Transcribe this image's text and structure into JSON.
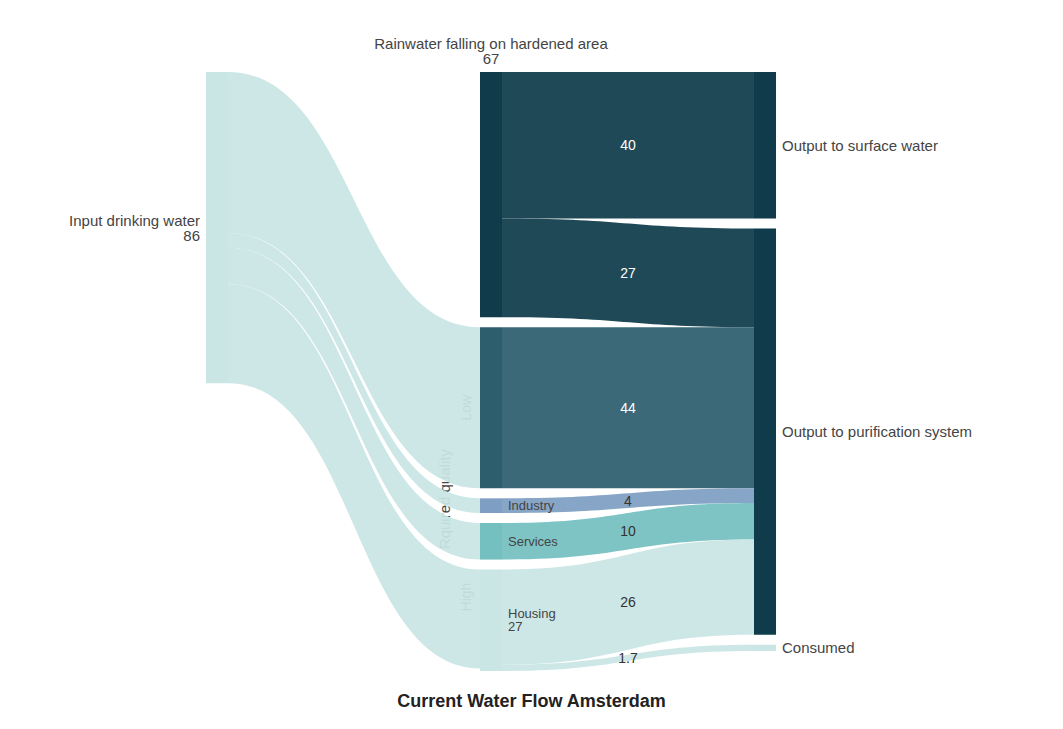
{
  "chart_data": {
    "type": "sankey",
    "title": "Current Water Flow Amsterdam",
    "nodes": [
      {
        "name": "Rainwater falling on hardened area",
        "value": 67,
        "color": "#0f3b4b",
        "data_labels": true
      },
      {
        "name": "Input drinking water",
        "value": 86,
        "color": "#c9e5e4",
        "data_labels": true
      },
      {
        "name": "Low",
        "color": "#2c5e6e"
      },
      {
        "name": "Industry",
        "color": "#7e9ec3"
      },
      {
        "name": "Services",
        "color": "#74bfc0"
      },
      {
        "name": "Housing",
        "value": 27,
        "color": "#c9e5e4",
        "data_labels": true
      },
      {
        "name": "Output to surface water",
        "color": "#0f3b4b"
      },
      {
        "name": "Output to purification system",
        "color": "#0f3b4b"
      },
      {
        "name": "Consumed",
        "color": "#c9e5e4"
      }
    ],
    "links": [
      {
        "source": "Rainwater falling on hardened area",
        "target": "Output to surface water",
        "value": 40,
        "data_labels": true
      },
      {
        "source": "Rainwater falling on hardened area",
        "target": "Output to purification system",
        "value": 27,
        "data_labels": true
      },
      {
        "source": "Input drinking water",
        "target": "Low",
        "value": 44,
        "data_labels": false
      },
      {
        "source": "Input drinking water",
        "target": "Industry",
        "value": 4,
        "data_labels": false
      },
      {
        "source": "Input drinking water",
        "target": "Services",
        "value": 10,
        "data_labels": false
      },
      {
        "source": "Input drinking water",
        "target": "Housing",
        "value": 27,
        "data_labels": false
      },
      {
        "source": "Low",
        "target": "Output to purification system",
        "value": 44,
        "data_labels": true
      },
      {
        "source": "Industry",
        "target": "Output to purification system",
        "value": 4,
        "data_labels": true
      },
      {
        "source": "Services",
        "target": "Output to purification system",
        "value": 10,
        "data_labels": true
      },
      {
        "source": "Housing",
        "target": "Output to purification system",
        "value": 26,
        "data_labels": true
      },
      {
        "source": "Housing",
        "target": "Consumed",
        "value": 1.7,
        "data_labels": true
      }
    ],
    "quality": {
      "title": "Rquired quality",
      "groups": [
        {
          "label": "Low",
          "nodes": [
            "Low"
          ]
        },
        {
          "label": "High",
          "nodes": [
            "Services",
            "Housing"
          ]
        }
      ]
    }
  }
}
